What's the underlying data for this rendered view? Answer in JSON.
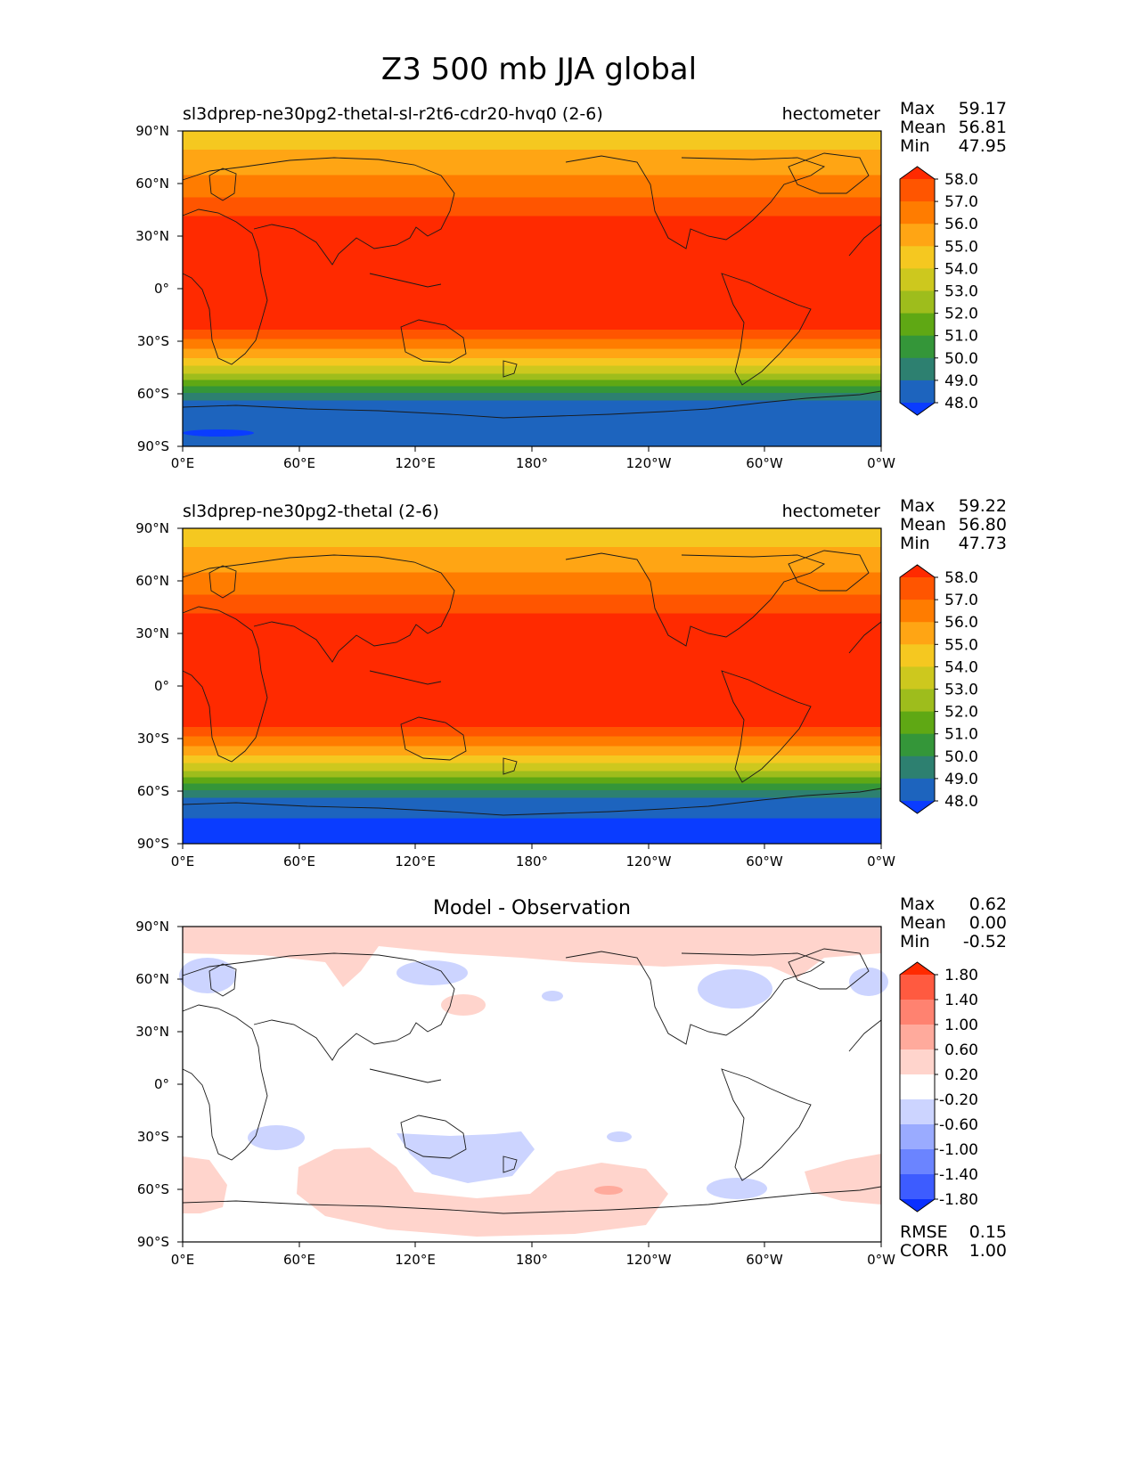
{
  "figure": {
    "title": "Z3 500 mb JJA global"
  },
  "axes": {
    "lat_ticks": [
      "90°N",
      "60°N",
      "30°N",
      "0°",
      "30°S",
      "60°S",
      "90°S"
    ],
    "lon_ticks": [
      "0°E",
      "60°E",
      "120°E",
      "180°",
      "120°W",
      "60°W",
      "0°W"
    ]
  },
  "panels": [
    {
      "title_left": "sl3dprep-ne30pg2-thetal-sl-r2t6-cdr20-hvq0 (2-6)",
      "title_right": "hectometer",
      "stats": [
        {
          "label": "Max",
          "value": "59.17"
        },
        {
          "label": "Mean",
          "value": "56.81"
        },
        {
          "label": "Min",
          "value": "47.95"
        }
      ],
      "colorbar": {
        "labels": [
          "58.0",
          "57.0",
          "56.0",
          "55.0",
          "54.0",
          "53.0",
          "52.0",
          "51.0",
          "50.0",
          "49.0",
          "48.0"
        ],
        "colors": [
          "#ff2a00",
          "#ff5500",
          "#ff7c00",
          "#ffa514",
          "#f5c820",
          "#cdc81e",
          "#9ebd1c",
          "#5fa814",
          "#349639",
          "#2d8070",
          "#1d64be",
          "#0a3cff"
        ]
      }
    },
    {
      "title_left": "sl3dprep-ne30pg2-thetal (2-6)",
      "title_right": "hectometer",
      "stats": [
        {
          "label": "Max",
          "value": "59.22"
        },
        {
          "label": "Mean",
          "value": "56.80"
        },
        {
          "label": "Min",
          "value": "47.73"
        }
      ],
      "colorbar": {
        "labels": [
          "58.0",
          "57.0",
          "56.0",
          "55.0",
          "54.0",
          "53.0",
          "52.0",
          "51.0",
          "50.0",
          "49.0",
          "48.0"
        ],
        "colors": [
          "#ff2a00",
          "#ff5500",
          "#ff7c00",
          "#ffa514",
          "#f5c820",
          "#cdc81e",
          "#9ebd1c",
          "#5fa814",
          "#349639",
          "#2d8070",
          "#1d64be",
          "#0a3cff"
        ]
      }
    },
    {
      "title_center": "Model - Observation",
      "stats": [
        {
          "label": "Max",
          "value": "0.62"
        },
        {
          "label": "Mean",
          "value": "0.00"
        },
        {
          "label": "Min",
          "value": "-0.52"
        }
      ],
      "colorbar": {
        "labels": [
          "1.80",
          "1.40",
          "1.00",
          "0.60",
          "0.20",
          "-0.20",
          "-0.60",
          "-1.00",
          "-1.40",
          "-1.80"
        ],
        "colors": [
          "#ff2a00",
          "#ff5a40",
          "#ff8270",
          "#ffaa9c",
          "#ffd4cc",
          "#ffffff",
          "#ccd4ff",
          "#9aabff",
          "#6b84ff",
          "#3d5cff",
          "#0a30ff"
        ]
      },
      "metrics": [
        {
          "label": "RMSE",
          "value": "0.15"
        },
        {
          "label": "CORR",
          "value": "1.00"
        }
      ]
    }
  ],
  "chart_data": [
    {
      "type": "heatmap",
      "title": "sl3dprep-ne30pg2-thetal-sl-r2t6-cdr20-hvq0 (2-6)",
      "units": "hectometer",
      "x_range": [
        "0°E",
        "0°W"
      ],
      "y_range": [
        "90°S",
        "90°N"
      ],
      "levels": [
        48,
        49,
        50,
        51,
        52,
        53,
        54,
        55,
        56,
        57,
        58
      ],
      "max": 59.17,
      "mean": 56.81,
      "min": 47.95
    },
    {
      "type": "heatmap",
      "title": "sl3dprep-ne30pg2-thetal (2-6)",
      "units": "hectometer",
      "x_range": [
        "0°E",
        "0°W"
      ],
      "y_range": [
        "90°S",
        "90°N"
      ],
      "levels": [
        48,
        49,
        50,
        51,
        52,
        53,
        54,
        55,
        56,
        57,
        58
      ],
      "max": 59.22,
      "mean": 56.8,
      "min": 47.73
    },
    {
      "type": "heatmap",
      "title": "Model - Observation",
      "x_range": [
        "0°E",
        "0°W"
      ],
      "y_range": [
        "90°S",
        "90°N"
      ],
      "levels": [
        -1.8,
        -1.4,
        -1.0,
        -0.6,
        -0.2,
        0.2,
        0.6,
        1.0,
        1.4,
        1.8
      ],
      "max": 0.62,
      "mean": 0.0,
      "min": -0.52,
      "rmse": 0.15,
      "corr": 1.0
    }
  ]
}
